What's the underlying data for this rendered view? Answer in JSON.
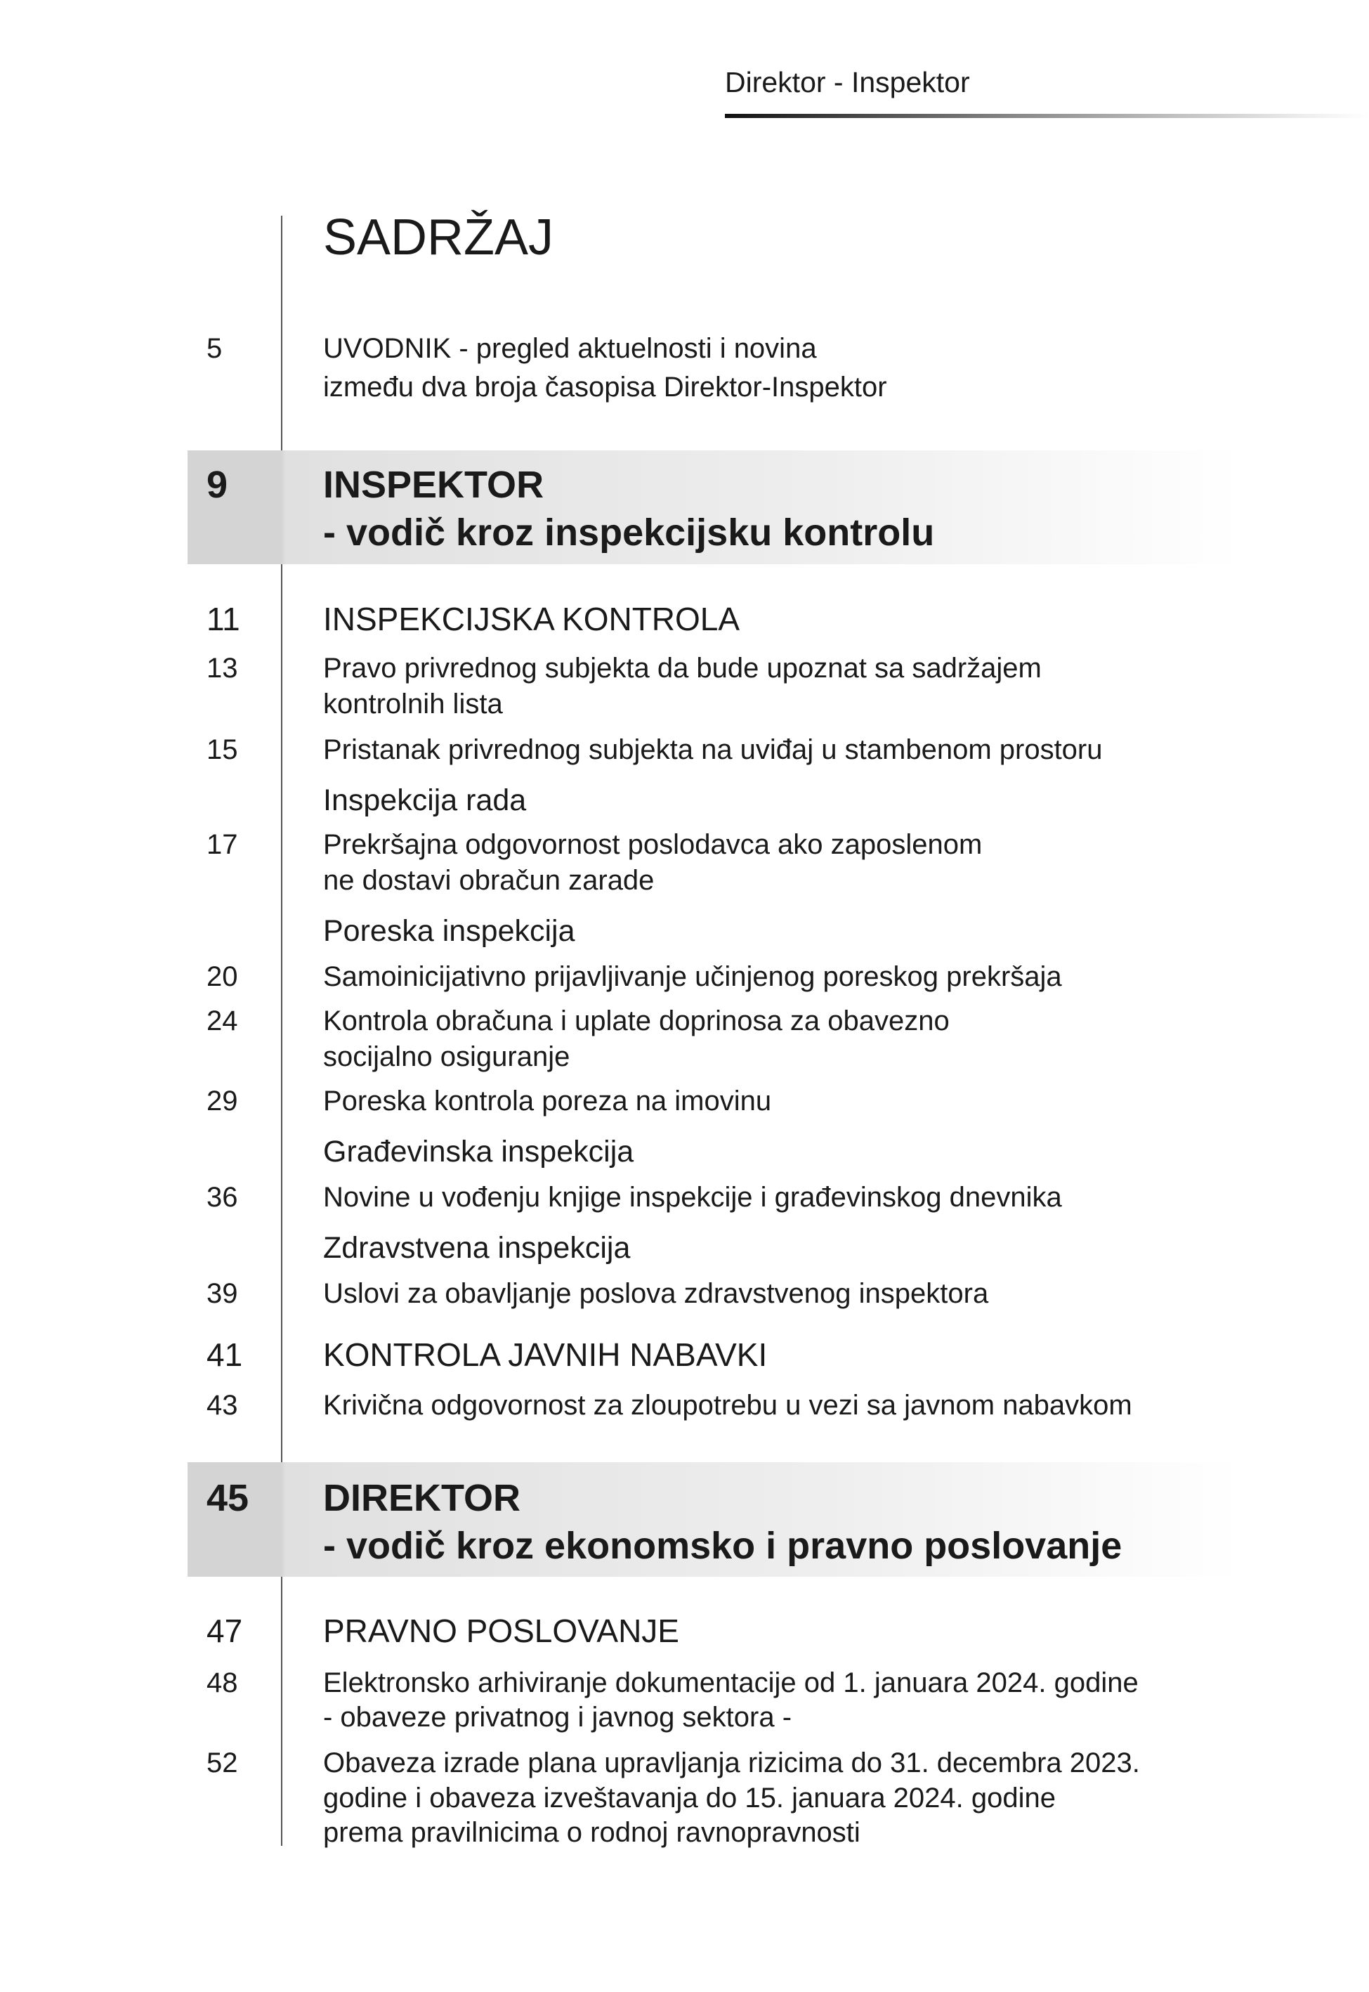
{
  "header": {
    "running_title": "Direktor - Inspektor"
  },
  "toc": {
    "title": "SADRŽAJ",
    "entries": [
      {
        "kind": "entry",
        "page": "5",
        "lines": [
          "UVODNIK - pregled aktuelnosti i novina",
          "između dva broja časopisa Direktor-Inspektor"
        ]
      },
      {
        "kind": "band",
        "page": "9",
        "lines": [
          "INSPEKTOR",
          "- vodič kroz inspekcijsku kontrolu"
        ]
      },
      {
        "kind": "section",
        "page": "11",
        "lines": [
          "INSPEKCIJSKA KONTROLA"
        ]
      },
      {
        "kind": "entry",
        "page": "13",
        "lines": [
          "Pravo privrednog subjekta da bude upoznat sa sadržajem",
          "kontrolnih lista"
        ]
      },
      {
        "kind": "entry",
        "page": "15",
        "lines": [
          "Pristanak privrednog subjekta na uviđaj u stambenom prostoru"
        ]
      },
      {
        "kind": "sub",
        "page": "",
        "lines": [
          "Inspekcija rada"
        ]
      },
      {
        "kind": "entry",
        "page": "17",
        "lines": [
          "Prekršajna odgovornost poslodavca ako zaposlenom",
          "ne dostavi obračun zarade"
        ]
      },
      {
        "kind": "sub",
        "page": "",
        "lines": [
          "Poreska inspekcija"
        ]
      },
      {
        "kind": "entry",
        "page": "20",
        "lines": [
          "Samoinicijativno prijavljivanje učinjenog poreskog prekršaja"
        ]
      },
      {
        "kind": "entry",
        "page": "24",
        "lines": [
          "Kontrola obračuna i uplate doprinosa za obavezno",
          "socijalno osiguranje"
        ]
      },
      {
        "kind": "entry",
        "page": "29",
        "lines": [
          "Poreska kontrola poreza na imovinu"
        ]
      },
      {
        "kind": "sub",
        "page": "",
        "lines": [
          "Građevinska inspekcija"
        ]
      },
      {
        "kind": "entry",
        "page": "36",
        "lines": [
          "Novine u vođenju knjige inspekcije i građevinskog dnevnika"
        ]
      },
      {
        "kind": "sub",
        "page": "",
        "lines": [
          "Zdravstvena inspekcija"
        ]
      },
      {
        "kind": "entry",
        "page": "39",
        "lines": [
          "Uslovi za obavljanje poslova zdravstvenog inspektora"
        ]
      },
      {
        "kind": "section",
        "page": "41",
        "lines": [
          "KONTROLA JAVNIH NABAVKI"
        ]
      },
      {
        "kind": "entry",
        "page": "43",
        "lines": [
          "Krivična odgovornost za zloupotrebu u vezi sa javnom nabavkom"
        ]
      },
      {
        "kind": "band",
        "page": "45",
        "lines": [
          "DIREKTOR",
          "- vodič kroz ekonomsko i pravno poslovanje"
        ]
      },
      {
        "kind": "section",
        "page": "47",
        "lines": [
          "PRAVNO POSLOVANJE"
        ]
      },
      {
        "kind": "entry",
        "page": "48",
        "lines": [
          "Elektronsko arhiviranje dokumentacije od 1. januara 2024. godine",
          "- obaveze privatnog i javnog sektora -"
        ]
      },
      {
        "kind": "entry",
        "page": "52",
        "lines": [
          "Obaveza izrade plana upravljanja rizicima do 31. decembra 2023.",
          "godine i obaveza izveštavanja do 15. januara 2024. godine",
          "prema pravilnicima o rodnoj ravnopravnosti"
        ]
      }
    ]
  }
}
